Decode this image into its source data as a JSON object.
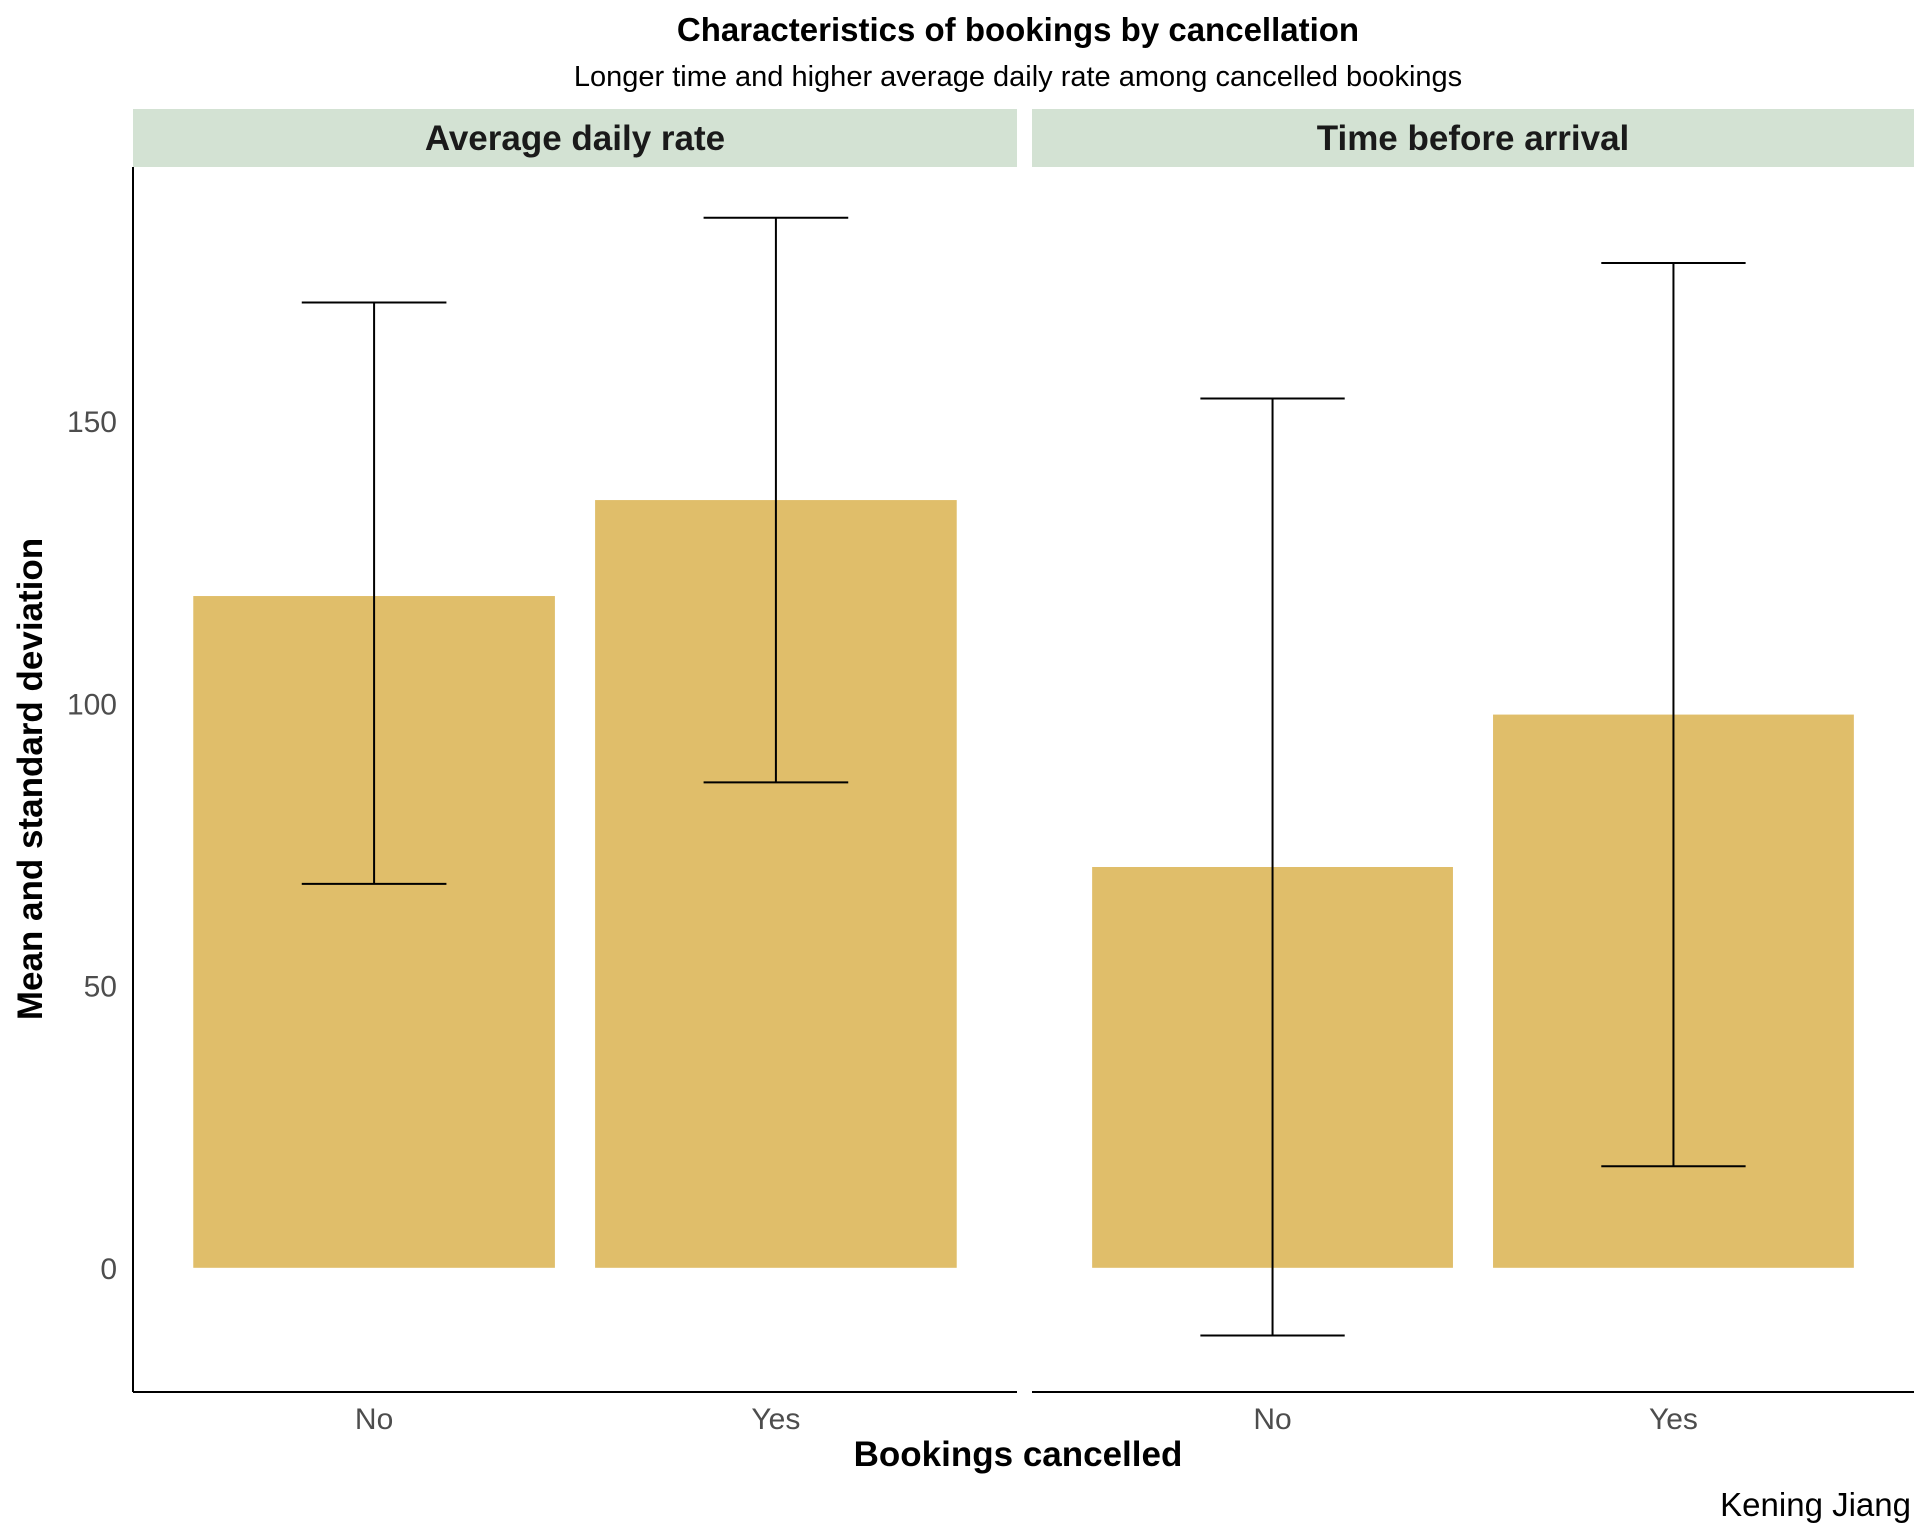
{
  "chart_data": {
    "type": "bar",
    "title": "Characteristics of bookings by cancellation",
    "subtitle": "Longer time and higher average daily rate among cancelled bookings",
    "xlabel": "Bookings cancelled",
    "ylabel": "Mean and standard deviation",
    "caption": "Kening Jiang",
    "categories": [
      "No",
      "Yes"
    ],
    "ylim": [
      -22,
      195
    ],
    "yticks": [
      0,
      50,
      100,
      150
    ],
    "yticklabels": [
      "0",
      "50",
      "100",
      "150"
    ],
    "grid": false,
    "bar_color": "#e0be6a",
    "strip_color": "#d3e2d3",
    "panels": [
      {
        "name": "Average daily rate",
        "values": [
          119,
          136
        ],
        "error_low": [
          68,
          86
        ],
        "error_high": [
          171,
          186
        ]
      },
      {
        "name": "Time before arrival",
        "values": [
          71,
          98
        ],
        "error_low": [
          -12,
          18
        ],
        "error_high": [
          154,
          178
        ]
      }
    ]
  }
}
